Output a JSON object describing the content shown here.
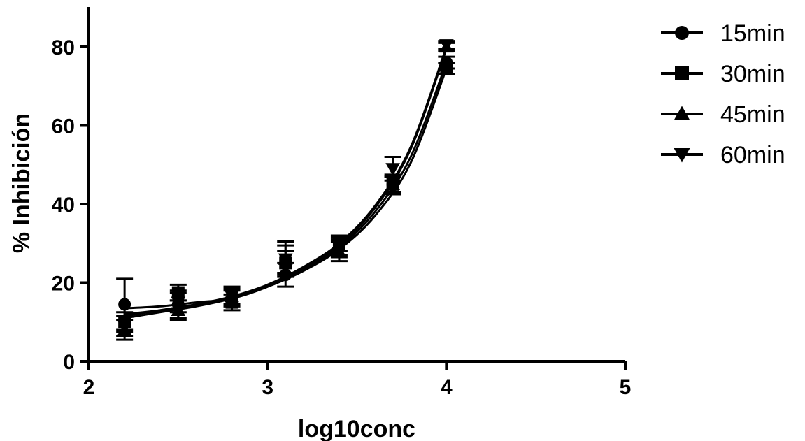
{
  "chart_data": {
    "type": "scatter",
    "title": "",
    "xlabel": "log10conc",
    "ylabel": "% Inhibición",
    "xlim": [
      2,
      5
    ],
    "ylim": [
      0,
      90
    ],
    "xticks": [
      "2",
      "3",
      "4",
      "5"
    ],
    "yticks": [
      "0",
      "20",
      "40",
      "60",
      "80"
    ],
    "grid": false,
    "legend_position": "top-right",
    "series": [
      {
        "name": "15min",
        "marker": "circle",
        "x": [
          2.2,
          2.5,
          2.8,
          3.1,
          3.4,
          3.7,
          4.0
        ],
        "y": [
          14.5,
          14.5,
          16.0,
          22.0,
          29.0,
          45.0,
          76.0
        ],
        "err": [
          6.5,
          3.5,
          2.0,
          3.0,
          2.5,
          2.5,
          1.5
        ]
      },
      {
        "name": "30min",
        "marker": "square",
        "x": [
          2.2,
          2.5,
          2.8,
          3.1,
          3.4,
          3.7,
          4.0
        ],
        "y": [
          10.0,
          17.5,
          15.0,
          25.0,
          30.0,
          45.0,
          74.5
        ],
        "err": [
          2.5,
          2.0,
          2.0,
          3.0,
          2.0,
          2.0,
          1.5
        ]
      },
      {
        "name": "45min",
        "marker": "triangle-up",
        "x": [
          2.2,
          2.5,
          2.8,
          3.1,
          3.4,
          3.7,
          4.0
        ],
        "y": [
          8.0,
          13.0,
          16.5,
          26.0,
          28.0,
          45.0,
          80.0
        ],
        "err": [
          2.5,
          2.5,
          2.0,
          4.5,
          2.5,
          2.0,
          1.0
        ]
      },
      {
        "name": "60min",
        "marker": "triangle-down",
        "x": [
          2.2,
          2.5,
          2.8,
          3.1,
          3.4,
          3.7,
          4.0
        ],
        "y": [
          9.0,
          15.0,
          16.5,
          26.0,
          29.0,
          49.0,
          80.5
        ],
        "err": [
          2.5,
          2.5,
          2.5,
          3.5,
          2.0,
          3.0,
          1.0
        ]
      }
    ],
    "fit_curves": [
      {
        "series": "15min",
        "x": [
          2.2,
          2.4,
          2.6,
          2.8,
          3.0,
          3.2,
          3.4,
          3.6,
          3.8,
          4.0
        ],
        "y": [
          13.5,
          14.0,
          15.0,
          16.0,
          19.0,
          23.5,
          29.0,
          38.0,
          52.0,
          76.0
        ]
      },
      {
        "series": "30min",
        "x": [
          2.2,
          2.4,
          2.6,
          2.8,
          3.0,
          3.2,
          3.4,
          3.6,
          3.8,
          4.0
        ],
        "y": [
          12.0,
          13.0,
          14.5,
          16.0,
          19.0,
          23.0,
          28.5,
          37.0,
          50.5,
          74.5
        ]
      },
      {
        "series": "45min",
        "x": [
          2.2,
          2.4,
          2.6,
          2.8,
          3.0,
          3.2,
          3.4,
          3.6,
          3.8,
          4.0
        ],
        "y": [
          11.0,
          12.5,
          14.0,
          16.0,
          19.0,
          23.5,
          29.5,
          39.0,
          54.0,
          79.5
        ]
      },
      {
        "series": "60min",
        "x": [
          2.2,
          2.4,
          2.6,
          2.8,
          3.0,
          3.2,
          3.4,
          3.6,
          3.8,
          4.0
        ],
        "y": [
          11.5,
          13.0,
          14.5,
          16.5,
          19.5,
          24.0,
          30.0,
          39.5,
          54.5,
          80.0
        ]
      }
    ]
  }
}
